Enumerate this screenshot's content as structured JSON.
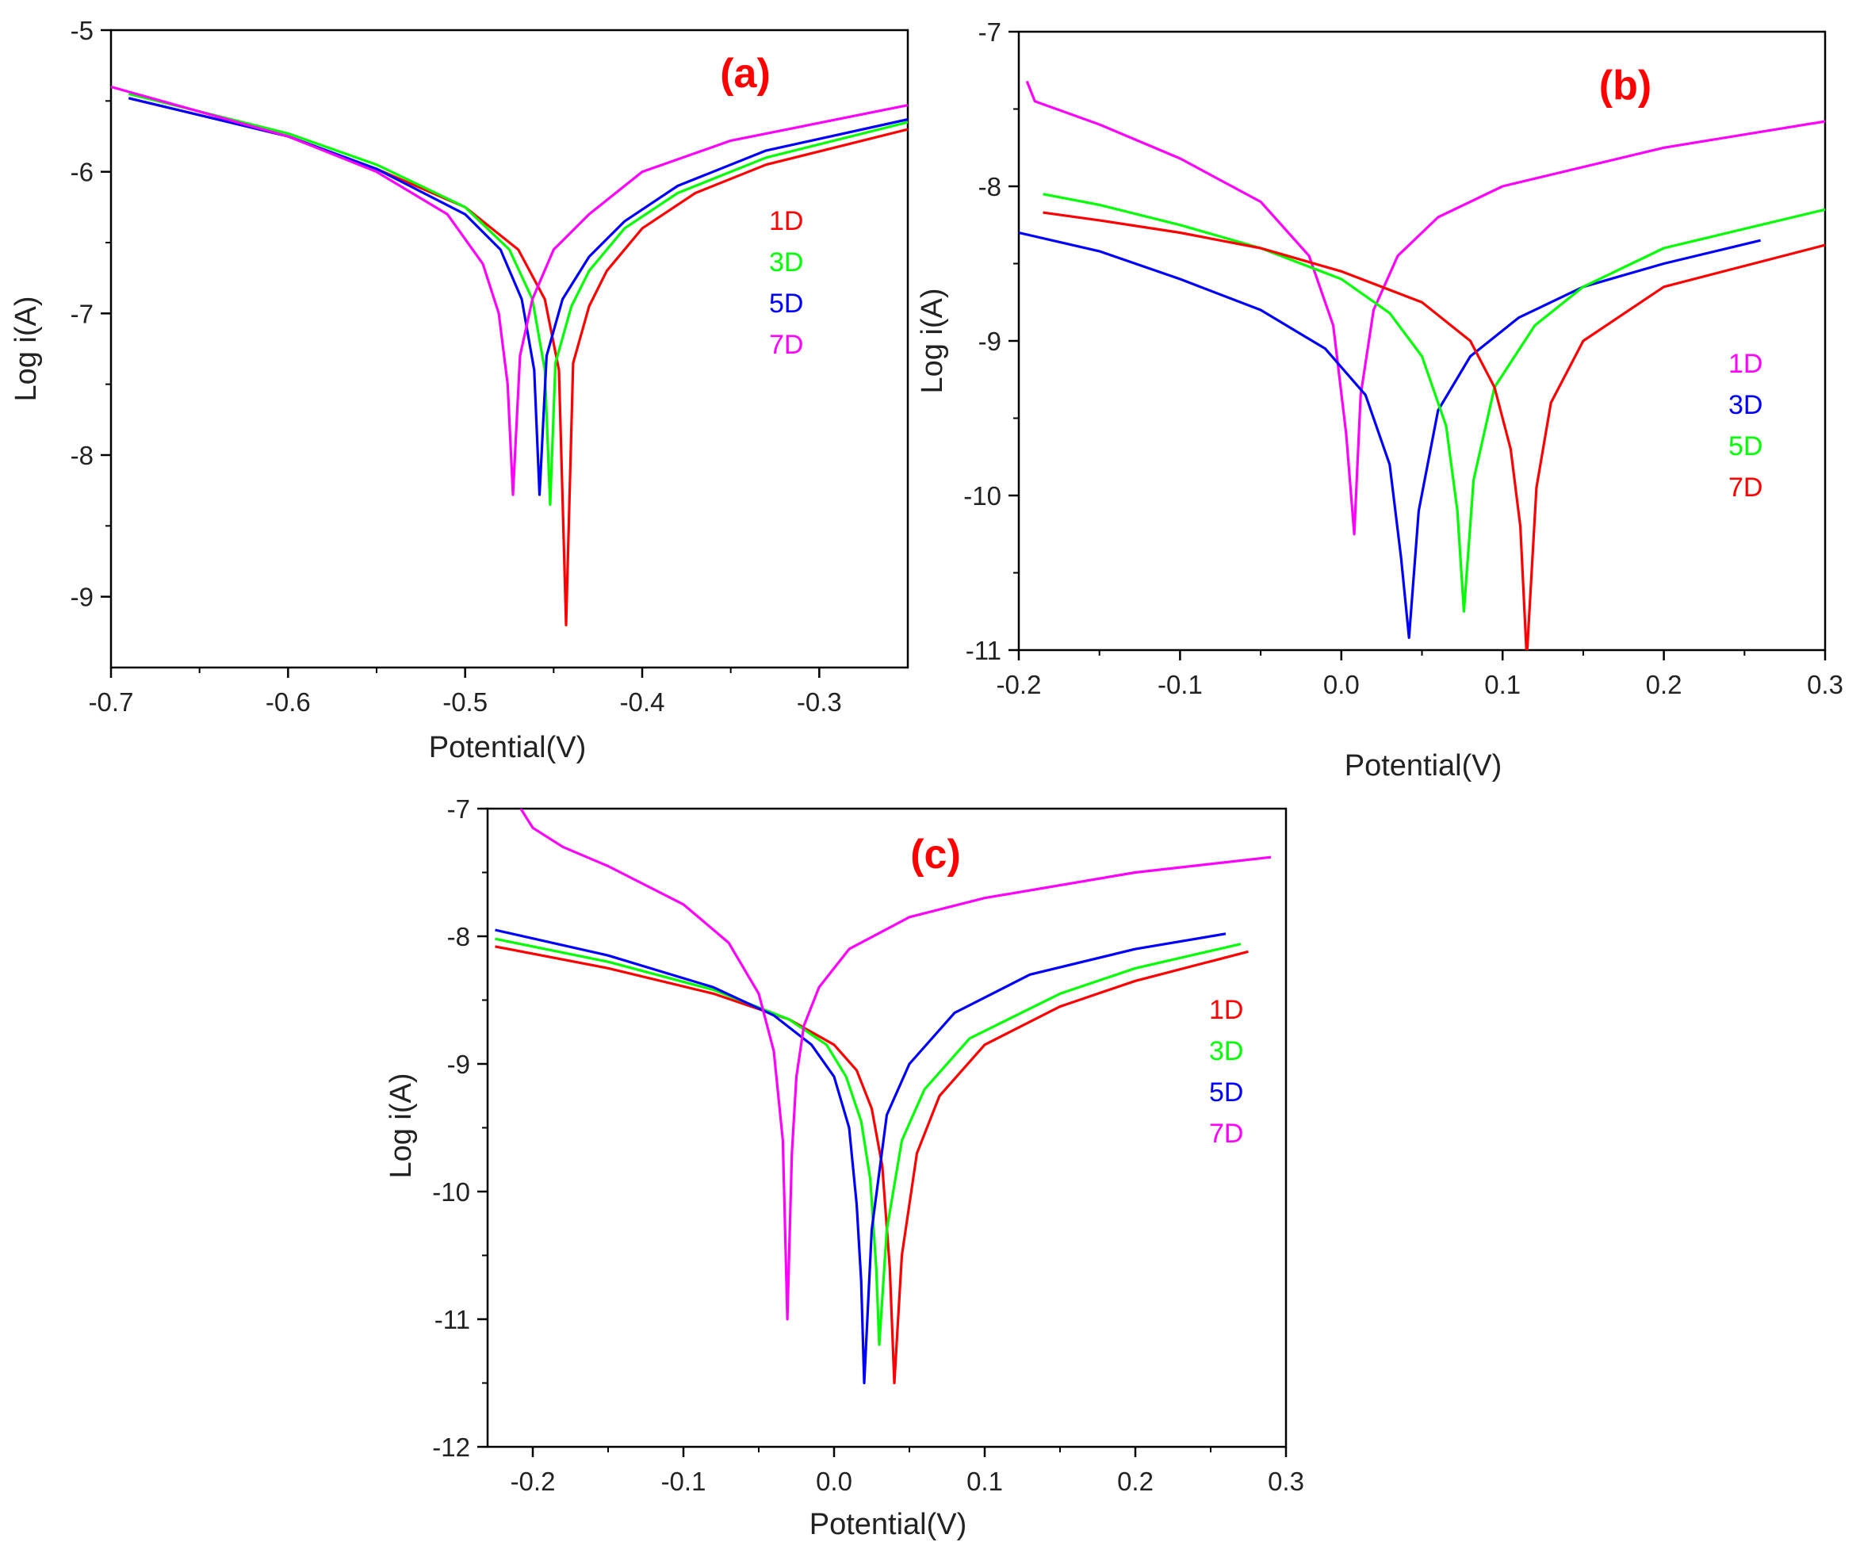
{
  "chart_data": [
    {
      "id": "a",
      "type": "line",
      "title": "(a)",
      "xlabel": "Potential(V)",
      "ylabel": "Log i(A)",
      "xlim": [
        -0.7,
        -0.25
      ],
      "ylim": [
        -9.5,
        -5
      ],
      "xticks": [
        -0.7,
        -0.6,
        -0.5,
        -0.4,
        -0.3
      ],
      "yticks": [
        -5,
        -6,
        -7,
        -8,
        -9
      ],
      "grid": false,
      "legend_position": "right",
      "title_color": "#ff0000",
      "series": [
        {
          "name": "1D",
          "color": "#ff0000",
          "x": [
            -0.69,
            -0.6,
            -0.55,
            -0.5,
            -0.47,
            -0.455,
            -0.447,
            -0.443,
            -0.439,
            -0.43,
            -0.42,
            -0.4,
            -0.37,
            -0.33,
            -0.25
          ],
          "y": [
            -5.48,
            -5.75,
            -5.98,
            -6.25,
            -6.55,
            -6.9,
            -7.4,
            -9.2,
            -7.35,
            -6.95,
            -6.7,
            -6.4,
            -6.15,
            -5.95,
            -5.7
          ]
        },
        {
          "name": "3D",
          "color": "#00ff00",
          "x": [
            -0.69,
            -0.6,
            -0.55,
            -0.5,
            -0.475,
            -0.462,
            -0.455,
            -0.452,
            -0.449,
            -0.44,
            -0.43,
            -0.41,
            -0.38,
            -0.33,
            -0.25
          ],
          "y": [
            -5.45,
            -5.73,
            -5.95,
            -6.25,
            -6.55,
            -6.9,
            -7.4,
            -8.35,
            -7.35,
            -6.95,
            -6.7,
            -6.4,
            -6.15,
            -5.9,
            -5.65
          ]
        },
        {
          "name": "5D",
          "color": "#0000ff",
          "x": [
            -0.69,
            -0.6,
            -0.55,
            -0.5,
            -0.48,
            -0.468,
            -0.461,
            -0.458,
            -0.454,
            -0.445,
            -0.43,
            -0.41,
            -0.38,
            -0.33,
            -0.25
          ],
          "y": [
            -5.48,
            -5.75,
            -5.98,
            -6.3,
            -6.55,
            -6.9,
            -7.4,
            -8.28,
            -7.3,
            -6.9,
            -6.6,
            -6.35,
            -6.1,
            -5.85,
            -5.63
          ]
        },
        {
          "name": "7D",
          "color": "#ff00ff",
          "x": [
            -0.7,
            -0.6,
            -0.55,
            -0.51,
            -0.49,
            -0.481,
            -0.476,
            -0.473,
            -0.469,
            -0.462,
            -0.45,
            -0.43,
            -0.4,
            -0.35,
            -0.25
          ],
          "y": [
            -5.4,
            -5.75,
            -6.0,
            -6.3,
            -6.65,
            -7.0,
            -7.5,
            -8.28,
            -7.3,
            -6.9,
            -6.55,
            -6.3,
            -6.0,
            -5.78,
            -5.53
          ]
        }
      ]
    },
    {
      "id": "b",
      "type": "line",
      "title": "(b)",
      "xlabel": "Potential(V)",
      "ylabel": "Log i(A)",
      "xlim": [
        -0.2,
        0.3
      ],
      "ylim": [
        -11,
        -7
      ],
      "xticks": [
        -0.2,
        -0.1,
        0.0,
        0.1,
        0.2,
        0.3
      ],
      "yticks": [
        -7,
        -8,
        -9,
        -10,
        -11
      ],
      "grid": false,
      "legend_position": "right",
      "title_color": "#ff0000",
      "series": [
        {
          "name": "1D",
          "color": "#ff00ff",
          "x": [
            -0.195,
            -0.19,
            -0.15,
            -0.1,
            -0.05,
            -0.02,
            -0.005,
            0.003,
            0.008,
            0.012,
            0.02,
            0.035,
            0.06,
            0.1,
            0.2,
            0.3
          ],
          "y": [
            -7.32,
            -7.45,
            -7.6,
            -7.82,
            -8.1,
            -8.45,
            -8.9,
            -9.6,
            -10.25,
            -9.35,
            -8.8,
            -8.45,
            -8.2,
            -8.0,
            -7.75,
            -7.58
          ]
        },
        {
          "name": "3D",
          "color": "#0000ff",
          "x": [
            -0.2,
            -0.15,
            -0.1,
            -0.05,
            -0.01,
            0.015,
            0.03,
            0.037,
            0.042,
            0.048,
            0.06,
            0.08,
            0.11,
            0.15,
            0.2,
            0.26
          ],
          "y": [
            -8.3,
            -8.42,
            -8.6,
            -8.8,
            -9.05,
            -9.35,
            -9.8,
            -10.4,
            -10.92,
            -10.1,
            -9.45,
            -9.1,
            -8.85,
            -8.65,
            -8.5,
            -8.35
          ]
        },
        {
          "name": "5D",
          "color": "#00ff00",
          "x": [
            -0.185,
            -0.15,
            -0.1,
            -0.05,
            0.0,
            0.03,
            0.05,
            0.065,
            0.072,
            0.076,
            0.082,
            0.095,
            0.12,
            0.15,
            0.2,
            0.3
          ],
          "y": [
            -8.05,
            -8.12,
            -8.25,
            -8.4,
            -8.6,
            -8.82,
            -9.1,
            -9.55,
            -10.1,
            -10.75,
            -9.9,
            -9.3,
            -8.9,
            -8.65,
            -8.4,
            -8.15
          ]
        },
        {
          "name": "7D",
          "color": "#ff0000",
          "x": [
            -0.185,
            -0.15,
            -0.1,
            -0.05,
            0.0,
            0.05,
            0.08,
            0.095,
            0.105,
            0.111,
            0.115,
            0.121,
            0.13,
            0.15,
            0.2,
            0.3
          ],
          "y": [
            -8.17,
            -8.22,
            -8.3,
            -8.4,
            -8.55,
            -8.75,
            -9.0,
            -9.3,
            -9.7,
            -10.2,
            -11.05,
            -9.95,
            -9.4,
            -9.0,
            -8.65,
            -8.38
          ]
        }
      ]
    },
    {
      "id": "c",
      "type": "line",
      "title": "(c)",
      "xlabel": "Potential(V)",
      "ylabel": "Log i(A)",
      "xlim": [
        -0.23,
        0.3
      ],
      "ylim": [
        -12,
        -7
      ],
      "xticks": [
        -0.2,
        -0.1,
        0.0,
        0.1,
        0.2,
        0.3
      ],
      "yticks": [
        -7,
        -8,
        -9,
        -10,
        -11,
        -12
      ],
      "grid": false,
      "legend_position": "right",
      "title_color": "#ff0000",
      "series": [
        {
          "name": "1D",
          "color": "#ff0000",
          "x": [
            -0.225,
            -0.15,
            -0.08,
            -0.03,
            0.0,
            0.015,
            0.025,
            0.032,
            0.037,
            0.04,
            0.045,
            0.055,
            0.07,
            0.1,
            0.15,
            0.2,
            0.275
          ],
          "y": [
            -8.08,
            -8.25,
            -8.45,
            -8.65,
            -8.85,
            -9.05,
            -9.35,
            -9.8,
            -10.6,
            -11.5,
            -10.5,
            -9.7,
            -9.25,
            -8.85,
            -8.55,
            -8.35,
            -8.12
          ]
        },
        {
          "name": "3D",
          "color": "#00ff00",
          "x": [
            -0.225,
            -0.15,
            -0.08,
            -0.03,
            -0.005,
            0.008,
            0.018,
            0.024,
            0.028,
            0.03,
            0.035,
            0.045,
            0.06,
            0.09,
            0.15,
            0.2,
            0.27
          ],
          "y": [
            -8.02,
            -8.2,
            -8.42,
            -8.65,
            -8.85,
            -9.1,
            -9.45,
            -9.9,
            -10.6,
            -11.2,
            -10.3,
            -9.6,
            -9.2,
            -8.8,
            -8.45,
            -8.25,
            -8.06
          ]
        },
        {
          "name": "5D",
          "color": "#0000ff",
          "x": [
            -0.225,
            -0.15,
            -0.08,
            -0.04,
            -0.015,
            0.0,
            0.01,
            0.015,
            0.018,
            0.02,
            0.025,
            0.035,
            0.05,
            0.08,
            0.13,
            0.2,
            0.26
          ],
          "y": [
            -7.95,
            -8.15,
            -8.4,
            -8.62,
            -8.85,
            -9.1,
            -9.5,
            -10.1,
            -10.7,
            -11.5,
            -10.3,
            -9.4,
            -9.0,
            -8.6,
            -8.3,
            -8.1,
            -7.98
          ]
        },
        {
          "name": "7D",
          "color": "#ff00ff",
          "x": [
            -0.208,
            -0.2,
            -0.18,
            -0.15,
            -0.1,
            -0.07,
            -0.05,
            -0.04,
            -0.034,
            -0.031,
            -0.028,
            -0.025,
            -0.02,
            -0.01,
            0.01,
            0.05,
            0.1,
            0.2,
            0.29
          ],
          "y": [
            -7.0,
            -7.15,
            -7.3,
            -7.45,
            -7.75,
            -8.05,
            -8.45,
            -8.9,
            -9.6,
            -11.0,
            -9.7,
            -9.1,
            -8.7,
            -8.4,
            -8.1,
            -7.85,
            -7.7,
            -7.5,
            -7.38
          ]
        }
      ]
    }
  ]
}
